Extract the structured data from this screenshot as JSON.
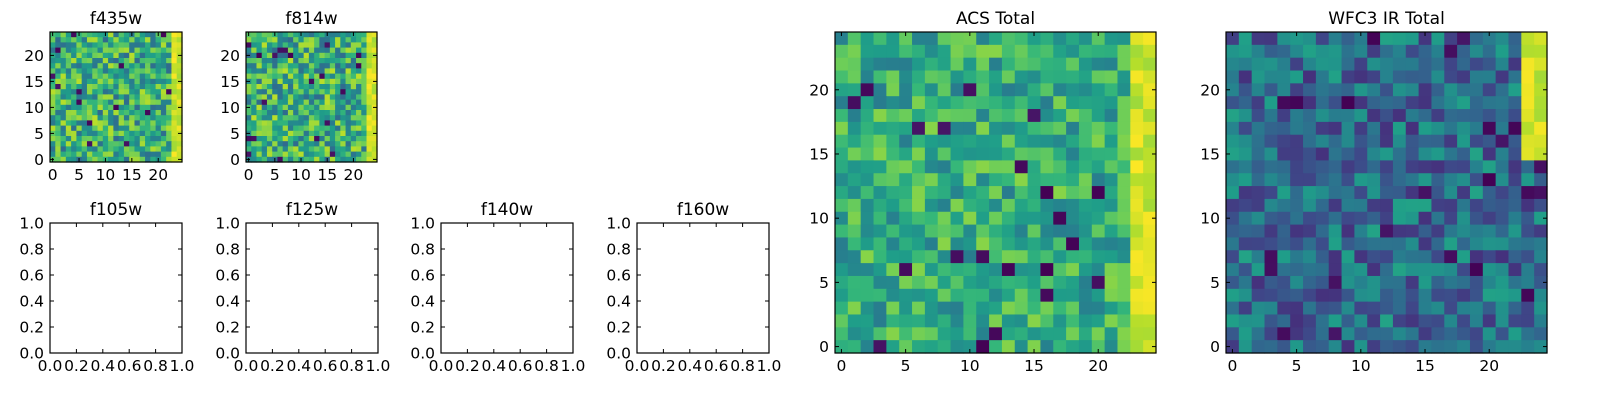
{
  "chart_data": [
    {
      "type": "heatmap",
      "title": "f435w",
      "xlabel": "",
      "ylabel": "",
      "xlim": [
        -0.5,
        24.5
      ],
      "ylim": [
        -0.5,
        24.5
      ],
      "xticks": [
        0,
        5,
        10,
        15,
        20
      ],
      "yticks": [
        0,
        5,
        10,
        15,
        20
      ],
      "grid": false,
      "colormap": "viridis",
      "bright_edge": "right",
      "rows": 25,
      "cols": 25
    },
    {
      "type": "heatmap",
      "title": "f814w",
      "xlabel": "",
      "ylabel": "",
      "xlim": [
        -0.5,
        24.5
      ],
      "ylim": [
        -0.5,
        24.5
      ],
      "xticks": [
        0,
        5,
        10,
        15,
        20
      ],
      "yticks": [
        0,
        5,
        10,
        15,
        20
      ],
      "grid": false,
      "colormap": "viridis",
      "bright_edge": "right",
      "rows": 25,
      "cols": 25
    },
    {
      "type": "empty",
      "title": "f105w",
      "xlim": [
        0,
        1
      ],
      "ylim": [
        0,
        1
      ],
      "xticks": [
        "0.0",
        "0.2",
        "0.4",
        "0.6",
        "0.8",
        "1.0"
      ],
      "yticks": [
        "0.0",
        "0.2",
        "0.4",
        "0.6",
        "0.8",
        "1.0"
      ]
    },
    {
      "type": "empty",
      "title": "f125w",
      "xlim": [
        0,
        1
      ],
      "ylim": [
        0,
        1
      ],
      "xticks": [
        "0.0",
        "0.2",
        "0.4",
        "0.6",
        "0.8",
        "1.0"
      ],
      "yticks": [
        "0.0",
        "0.2",
        "0.4",
        "0.6",
        "0.8",
        "1.0"
      ]
    },
    {
      "type": "empty",
      "title": "f140w",
      "xlim": [
        0,
        1
      ],
      "ylim": [
        0,
        1
      ],
      "xticks": [
        "0.0",
        "0.2",
        "0.4",
        "0.6",
        "0.8",
        "1.0"
      ],
      "yticks": [
        "0.0",
        "0.2",
        "0.4",
        "0.6",
        "0.8",
        "1.0"
      ]
    },
    {
      "type": "empty",
      "title": "f160w",
      "xlim": [
        0,
        1
      ],
      "ylim": [
        0,
        1
      ],
      "xticks": [
        "0.0",
        "0.2",
        "0.4",
        "0.6",
        "0.8",
        "1.0"
      ],
      "yticks": [
        "0.0",
        "0.2",
        "0.4",
        "0.6",
        "0.8",
        "1.0"
      ]
    },
    {
      "type": "heatmap",
      "title": "ACS Total",
      "xlabel": "",
      "ylabel": "",
      "xlim": [
        -0.5,
        24.5
      ],
      "ylim": [
        -0.5,
        24.5
      ],
      "xticks": [
        0,
        5,
        10,
        15,
        20
      ],
      "yticks": [
        0,
        5,
        10,
        15,
        20
      ],
      "grid": false,
      "colormap": "viridis",
      "bright_edge": "right",
      "rows": 25,
      "cols": 25
    },
    {
      "type": "heatmap",
      "title": "WFC3 IR Total",
      "xlabel": "",
      "ylabel": "",
      "xlim": [
        -0.5,
        24.5
      ],
      "ylim": [
        -0.5,
        24.5
      ],
      "xticks": [
        0,
        5,
        10,
        15,
        20
      ],
      "yticks": [
        0,
        5,
        10,
        15,
        20
      ],
      "grid": false,
      "colormap": "viridis",
      "bright_edge": "top-right",
      "rows": 25,
      "cols": 25
    }
  ]
}
